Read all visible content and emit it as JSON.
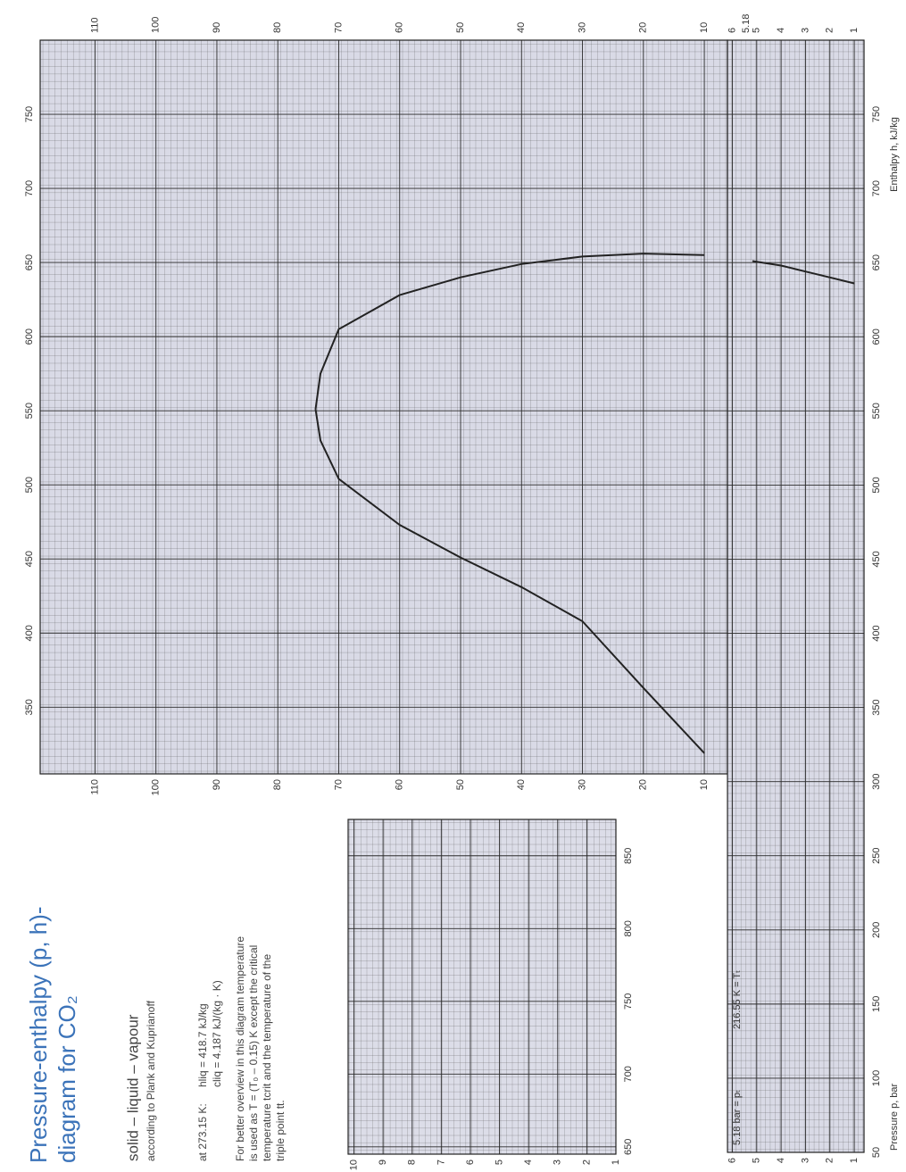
{
  "title_lines": [
    "Pressure-enthalpy (p, h)-",
    "diagram for CO₂"
  ],
  "subtitle": "solid – liquid – vapour",
  "source": "according to Plank and Kuprianoff",
  "notes": {
    "reference": "at 273.15 K:",
    "h_liq": "hliq = 418.7 kJ/kg",
    "c_liq": "cliq = 4.187 kJ/(kg · K)",
    "overview": [
      "For better overview in this diagram temperature",
      "is used as T = (T₀ – 0.15) K except the critical",
      "temperature tcrit and the temperature of the",
      "triple point tt."
    ]
  },
  "chart_data": [
    {
      "type": "line",
      "xlim": [
        305,
        800
      ],
      "xticks": [
        350,
        400,
        450,
        500,
        550,
        600,
        650,
        700,
        750
      ],
      "ylim": [
        6.2,
        119
      ],
      "yticks": [
        10,
        20,
        30,
        40,
        50,
        60,
        70,
        80,
        90,
        100,
        110
      ],
      "grid": true,
      "series": [
        {
          "color": "#222222",
          "x": [
            319,
            363,
            408,
            431,
            451,
            473,
            504,
            530,
            551
          ],
          "values": [
            10,
            20,
            30,
            40,
            50,
            60,
            70,
            73,
            73.8
          ]
        },
        {
          "color": "#222222",
          "x": [
            655,
            656,
            654,
            649,
            640,
            628,
            605,
            575,
            551
          ],
          "values": [
            10,
            20,
            30,
            40,
            50,
            60,
            70,
            73,
            73.8
          ]
        }
      ]
    },
    {
      "type": "line",
      "xlabel": "Enthalpy h, kJ/kg",
      "ylabel": "Pressure p, bar",
      "xlim": [
        50,
        800
      ],
      "xticks": [
        50,
        100,
        150,
        200,
        250,
        300,
        350,
        400,
        450,
        500,
        550,
        600,
        650,
        700,
        750
      ],
      "ylim": [
        0.6,
        6.2
      ],
      "yticks": [
        1,
        2,
        3,
        4,
        5,
        6
      ],
      "grid": true,
      "annotations": [
        "5.18 bar = pₜ",
        "216.55 K = Tₜ",
        "5.18"
      ],
      "series": [
        {
          "color": "#222222",
          "x": [
            636,
            640,
            644,
            648,
            651
          ],
          "values": [
            1,
            2,
            3,
            4,
            5.18
          ]
        }
      ]
    },
    {
      "type": "line",
      "xlim": [
        645,
        875
      ],
      "xticks": [
        650,
        700,
        750,
        800,
        850
      ],
      "ylim": [
        1,
        10.2
      ],
      "yticks": [
        1,
        2,
        3,
        4,
        5,
        6,
        7,
        8,
        9,
        10
      ],
      "grid": true,
      "series": []
    }
  ]
}
